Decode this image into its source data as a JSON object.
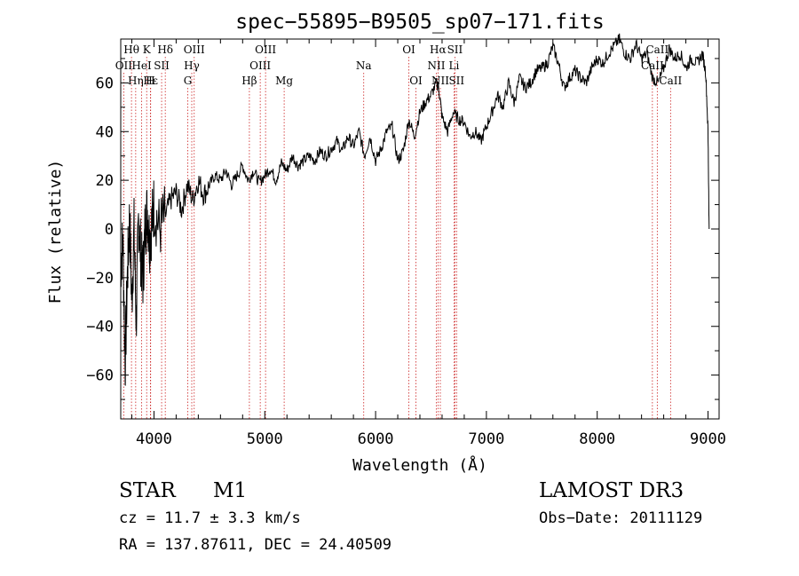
{
  "chart_data": {
    "type": "line",
    "title": "spec−55895−B9505_sp07−171.fits",
    "xlabel": "Wavelength (Å)",
    "ylabel": "Flux (relative)",
    "xlim": [
      3700,
      9100
    ],
    "ylim": [
      -78,
      78
    ],
    "xticks": [
      4000,
      5000,
      6000,
      7000,
      8000,
      9000
    ],
    "yticks": [
      -60,
      -40,
      -20,
      0,
      20,
      40,
      60
    ],
    "ytick_labels": [
      "−60",
      "−40",
      "−20",
      "0",
      "20",
      "40",
      "60"
    ],
    "series": [
      {
        "name": "flux",
        "x": [
          3700,
          3720,
          3740,
          3760,
          3780,
          3800,
          3820,
          3840,
          3860,
          3880,
          3900,
          3920,
          3940,
          3960,
          3980,
          4000,
          4050,
          4100,
          4150,
          4200,
          4250,
          4300,
          4350,
          4400,
          4450,
          4500,
          4550,
          4600,
          4650,
          4700,
          4750,
          4800,
          4850,
          4900,
          4950,
          5000,
          5050,
          5100,
          5150,
          5200,
          5250,
          5300,
          5350,
          5400,
          5450,
          5500,
          5550,
          5600,
          5650,
          5700,
          5750,
          5800,
          5850,
          5900,
          5950,
          6000,
          6050,
          6100,
          6150,
          6200,
          6250,
          6300,
          6350,
          6400,
          6450,
          6500,
          6550,
          6570,
          6600,
          6650,
          6700,
          6750,
          6800,
          6850,
          6900,
          6950,
          7000,
          7050,
          7100,
          7150,
          7200,
          7250,
          7300,
          7350,
          7400,
          7450,
          7500,
          7550,
          7600,
          7650,
          7700,
          7750,
          7800,
          7850,
          7900,
          7950,
          8000,
          8050,
          8100,
          8150,
          8200,
          8250,
          8300,
          8350,
          8400,
          8450,
          8500,
          8550,
          8600,
          8650,
          8700,
          8750,
          8800,
          8850,
          8900,
          8950,
          8980,
          9000,
          9010
        ],
        "y": [
          -15,
          -5,
          -55,
          -20,
          5,
          -30,
          0,
          -38,
          5,
          -10,
          -20,
          0,
          8,
          -5,
          2,
          10,
          0,
          5,
          12,
          15,
          8,
          18,
          12,
          20,
          14,
          18,
          22,
          20,
          24,
          18,
          22,
          26,
          20,
          24,
          19,
          22,
          25,
          20,
          27,
          24,
          30,
          26,
          28,
          30,
          28,
          32,
          30,
          33,
          36,
          32,
          38,
          34,
          40,
          30,
          38,
          28,
          33,
          40,
          42,
          28,
          32,
          45,
          38,
          48,
          52,
          55,
          60,
          58,
          46,
          40,
          48,
          45,
          44,
          38,
          40,
          36,
          42,
          48,
          55,
          50,
          60,
          52,
          62,
          58,
          60,
          65,
          66,
          68,
          75,
          68,
          58,
          62,
          65,
          62,
          60,
          66,
          70,
          68,
          72,
          75,
          78,
          72,
          70,
          76,
          70,
          72,
          62,
          60,
          66,
          74,
          70,
          72,
          66,
          70,
          68,
          72,
          64,
          40,
          0
        ]
      }
    ],
    "lines": [
      {
        "label": "Hθ",
        "x": 3797,
        "row": 0
      },
      {
        "label": "OII",
        "x": 3727,
        "row": 1
      },
      {
        "label": "Hη",
        "x": 3835,
        "row": 2
      },
      {
        "label": "HeI",
        "x": 3889,
        "row": 1
      },
      {
        "label": "K",
        "x": 3934,
        "row": 0
      },
      {
        "label": "Hε",
        "x": 3970,
        "row": 2
      },
      {
        "label": "SII",
        "x": 4069,
        "row": 1
      },
      {
        "label": "H",
        "x": 3968,
        "row": 2
      },
      {
        "label": "Hδ",
        "x": 4102,
        "row": 0
      },
      {
        "label": "OIII",
        "x": 4363,
        "row": 0
      },
      {
        "label": "Hγ",
        "x": 4341,
        "row": 1
      },
      {
        "label": "G",
        "x": 4305,
        "row": 2
      },
      {
        "label": "OIII",
        "x": 5007,
        "row": 0
      },
      {
        "label": "OIII",
        "x": 4959,
        "row": 1
      },
      {
        "label": "Hβ",
        "x": 4861,
        "row": 2
      },
      {
        "label": "Mg",
        "x": 5175,
        "row": 2
      },
      {
        "label": "Na",
        "x": 5893,
        "row": 1
      },
      {
        "label": "OI",
        "x": 6300,
        "row": 0
      },
      {
        "label": "OI",
        "x": 6364,
        "row": 2
      },
      {
        "label": "Hα",
        "x": 6563,
        "row": 0
      },
      {
        "label": "SII",
        "x": 6716,
        "row": 0
      },
      {
        "label": "NII",
        "x": 6548,
        "row": 1
      },
      {
        "label": "Li",
        "x": 6708,
        "row": 1
      },
      {
        "label": "NII",
        "x": 6584,
        "row": 2
      },
      {
        "label": "SII",
        "x": 6731,
        "row": 2
      },
      {
        "label": "CaII",
        "x": 8542,
        "row": 0
      },
      {
        "label": "CaII",
        "x": 8498,
        "row": 1
      },
      {
        "label": "CaII",
        "x": 8662,
        "row": 2
      }
    ]
  },
  "info": {
    "object_class": "STAR",
    "subclass": "M1",
    "survey": "LAMOST DR3",
    "cz": "cz = 11.7 ± 3.3 km/s",
    "obs_date": "Obs−Date: 20111129",
    "coords": "RA = 137.87611, DEC =  24.40509"
  },
  "colors": {
    "line_marker": "#cc2222",
    "spectrum": "#000000"
  }
}
